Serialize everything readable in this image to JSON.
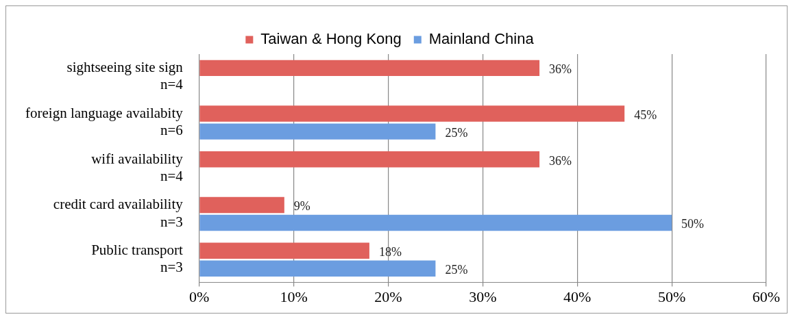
{
  "chart_data": {
    "type": "bar",
    "orientation": "horizontal",
    "categories": [
      "sightseeing site sign\nn=4",
      "foreign language availabity\nn=6",
      "wifi availability\nn=4",
      "credit card availability\nn=3",
      "Public transport\nn=3"
    ],
    "series": [
      {
        "name": "Taiwan & Hong Kong",
        "color": "#e0615c",
        "values": [
          36,
          45,
          36,
          9,
          18
        ],
        "value_labels": [
          "36%",
          "45%",
          "36%",
          "9%",
          "18%"
        ]
      },
      {
        "name": "Mainland China",
        "color": "#6b9de0",
        "values": [
          null,
          25,
          null,
          50,
          25
        ],
        "value_labels": [
          null,
          "25%",
          null,
          "50%",
          "25%"
        ]
      }
    ],
    "xlim": [
      0,
      60
    ],
    "xticks": [
      {
        "value": 0,
        "label": "0%"
      },
      {
        "value": 10,
        "label": "10%"
      },
      {
        "value": 20,
        "label": "20%"
      },
      {
        "value": 30,
        "label": "30%"
      },
      {
        "value": 40,
        "label": "40%"
      },
      {
        "value": 50,
        "label": "50%"
      },
      {
        "value": 60,
        "label": "60%"
      }
    ],
    "grid": "x",
    "legend": "top"
  }
}
